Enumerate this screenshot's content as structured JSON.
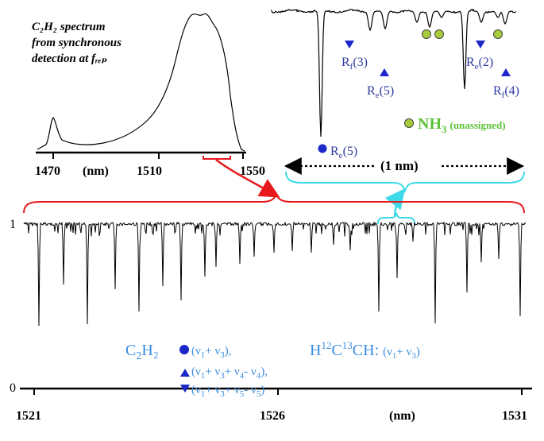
{
  "inset": {
    "title_line1": "C₂H₂ spectrum",
    "title_line2": "from synchronous",
    "title_line3": "detection at fᵣₑₚ",
    "ticks": [
      "1470",
      "1510",
      "1550"
    ],
    "unit": "(nm)"
  },
  "zoom": {
    "labels": {
      "rf3": {
        "main": "R",
        "sub": "f",
        "rest": "(3)"
      },
      "re5": {
        "main": "R",
        "sub": "e",
        "rest": "(5)"
      },
      "re2": {
        "main": "R",
        "sub": "e",
        "rest": "(2)"
      },
      "rf4": {
        "main": "R",
        "sub": "f",
        "rest": "(4)"
      },
      "re5c": {
        "main": "R",
        "sub": "e",
        "rest": "(5)"
      }
    },
    "nh3": {
      "main": "NH",
      "sub": "3",
      "note": "(unassigned)"
    },
    "scale_label": "(1 nm)"
  },
  "main": {
    "yticks": [
      "0",
      "1"
    ],
    "xticks": [
      "1521",
      "1526",
      "1531"
    ],
    "unit": "(nm)"
  },
  "legend": {
    "c2h2": {
      "a": "C",
      "b": "2",
      "c": "H₂ "
    },
    "band1": {
      "t0": "(ν",
      "s1": "1",
      "t1": "+ ν",
      "s2": "3",
      "t2": "),"
    },
    "band2": {
      "t0": "(ν",
      "s1": "1",
      "t1": "+ ν",
      "s2": "3",
      "t2": "+ ν",
      "s3": "4",
      "t3": "- ν",
      "s4": "4",
      "t4": "),"
    },
    "band3": {
      "t0": "(ν",
      "s1": "1",
      "t1": "+ ν",
      "s2": "3",
      "t2": "+ ν",
      "s3": "5",
      "t3": "- ν",
      "s4": "5",
      "t4": ")"
    },
    "iso": {
      "a": "H",
      "b": "12",
      "c": "C",
      "d": "13",
      "e": "CH: ",
      "f": "(ν",
      "g": "1",
      "h": "+ ν",
      "i": "3",
      "j": ")"
    }
  }
}
